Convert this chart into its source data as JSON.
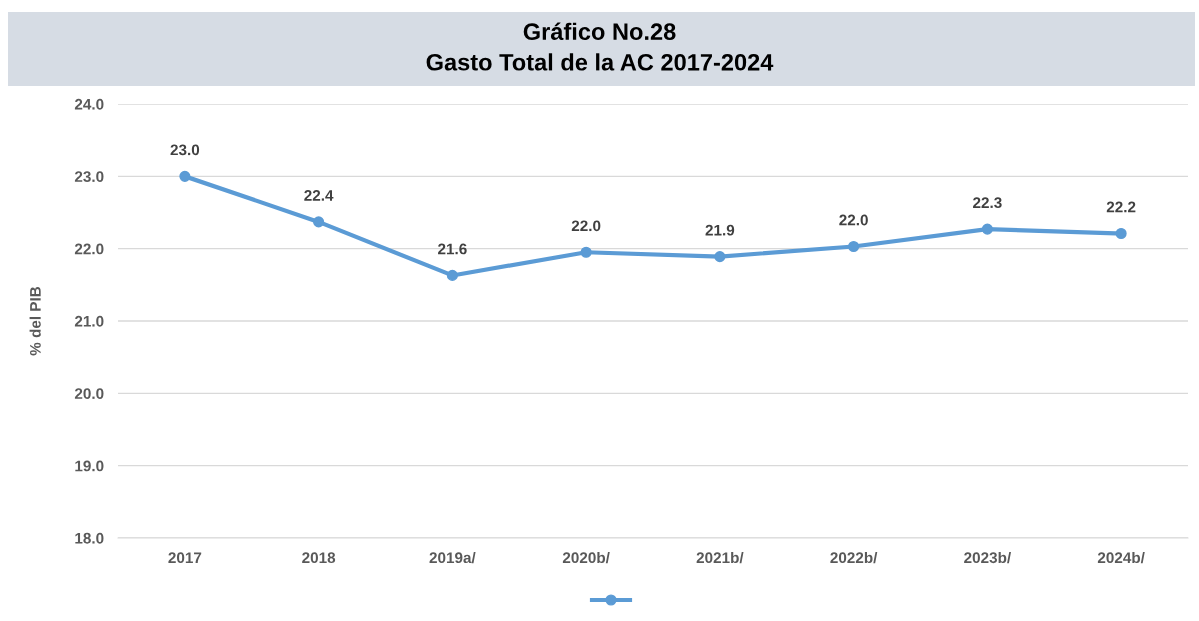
{
  "chart_data": {
    "type": "line",
    "title": "Gráfico No.28\nGasto Total de la AC 2017-2024",
    "ylabel": "% del PIB",
    "categories": [
      "2017",
      "2018",
      "2019a/",
      "2020b/",
      "2021b/",
      "2022b/",
      "2023b/",
      "2024b/"
    ],
    "series": [
      {
        "color": "#5b9bd5",
        "values": [
          23.0,
          22.37,
          21.63,
          21.95,
          21.89,
          22.03,
          22.27,
          22.21
        ],
        "value_labels": [
          "23.0",
          "22.4",
          "21.6",
          "22.0",
          "21.9",
          "22.0",
          "22.3",
          "22.2"
        ]
      }
    ],
    "ylim": [
      18,
      24
    ],
    "yticks": [
      {
        "value": 18,
        "label": "18.0"
      },
      {
        "value": 19,
        "label": "19.0"
      },
      {
        "value": 20,
        "label": "20.0"
      },
      {
        "value": 21,
        "label": "21.0"
      },
      {
        "value": 22,
        "label": "22.0"
      },
      {
        "value": 23,
        "label": "23.0"
      },
      {
        "value": 24,
        "label": "24.0"
      }
    ],
    "grid": "y",
    "marker": "circle",
    "line_style": "solid"
  }
}
